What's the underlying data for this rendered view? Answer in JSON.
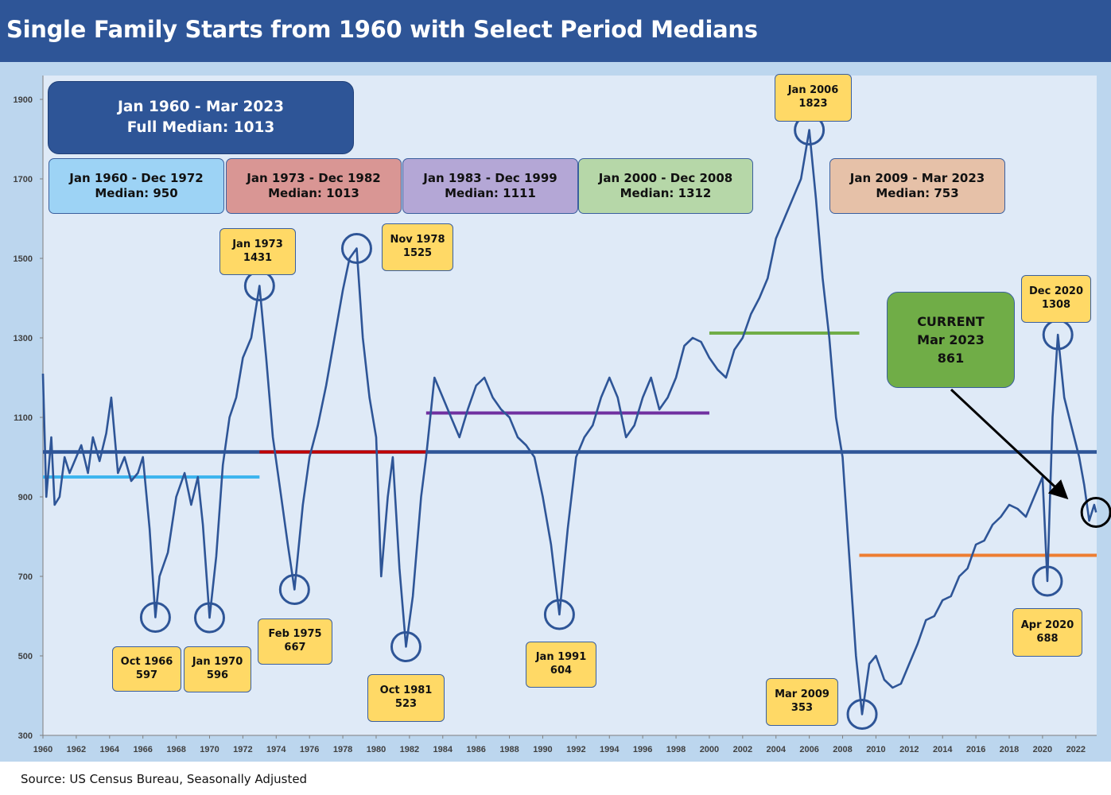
{
  "title": "Single Family Starts from 1960 with Select Period Medians",
  "source": "Source: US Census Bureau, Seasonally Adjusted",
  "full_median_box": {
    "line1": "Jan 1960 - Mar 2023",
    "line2": "Full Median: 1013"
  },
  "period_boxes": [
    {
      "line1": "Jan 1960 - Dec 1972",
      "line2": "Median: 950",
      "color": "#9dd3f5"
    },
    {
      "line1": "Jan 1973 - Dec 1982",
      "line2": "Median: 1013",
      "color": "#d99694"
    },
    {
      "line1": "Jan 1983 - Dec 1999",
      "line2": "Median: 1111",
      "color": "#b4a7d6"
    },
    {
      "line1": "Jan 2000 - Dec 2008",
      "line2": "Median: 1312",
      "color": "#b6d7a8"
    },
    {
      "line1": "Jan 2009 - Mar 2023",
      "line2": "Median: 753",
      "color": "#e6c1a8"
    }
  ],
  "current_box": {
    "line1": "CURRENT",
    "line2": "Mar 2023",
    "line3": "861",
    "color": "#70ad47"
  },
  "annotations": [
    {
      "date": "Oct 1966",
      "value": "597"
    },
    {
      "date": "Jan 1970",
      "value": "596"
    },
    {
      "date": "Jan 1973",
      "value": "1431"
    },
    {
      "date": "Feb 1975",
      "value": "667"
    },
    {
      "date": "Nov 1978",
      "value": "1525"
    },
    {
      "date": "Oct 1981",
      "value": "523"
    },
    {
      "date": "Jan 1991",
      "value": "604"
    },
    {
      "date": "Jan 2006",
      "value": "1823"
    },
    {
      "date": "Mar 2009",
      "value": "353"
    },
    {
      "date": "Apr 2020",
      "value": "688"
    },
    {
      "date": "Dec 2020",
      "value": "1308"
    }
  ],
  "chart_data": {
    "type": "line",
    "title": "Single Family Starts from 1960 with Select Period Medians",
    "xlim": [
      1960,
      2023.25
    ],
    "ylim": [
      300,
      1960
    ],
    "y_ticks": [
      300,
      500,
      700,
      900,
      1100,
      1300,
      1500,
      1700,
      1900
    ],
    "x_ticks": [
      1960,
      1962,
      1964,
      1966,
      1968,
      1970,
      1972,
      1974,
      1976,
      1978,
      1980,
      1982,
      1984,
      1986,
      1988,
      1990,
      1992,
      1994,
      1996,
      1998,
      2000,
      2002,
      2004,
      2006,
      2008,
      2010,
      2012,
      2014,
      2016,
      2018,
      2020,
      2022
    ],
    "series": [
      {
        "line_color": "#2e5597",
        "points": [
          [
            1960.0,
            1210
          ],
          [
            1960.2,
            900
          ],
          [
            1960.5,
            1050
          ],
          [
            1960.7,
            880
          ],
          [
            1961.0,
            900
          ],
          [
            1961.3,
            1000
          ],
          [
            1961.6,
            960
          ],
          [
            1962.0,
            1000
          ],
          [
            1962.3,
            1030
          ],
          [
            1962.7,
            960
          ],
          [
            1963.0,
            1050
          ],
          [
            1963.4,
            990
          ],
          [
            1963.8,
            1060
          ],
          [
            1964.1,
            1150
          ],
          [
            1964.5,
            960
          ],
          [
            1964.9,
            1000
          ],
          [
            1965.3,
            940
          ],
          [
            1965.7,
            960
          ],
          [
            1966.0,
            1000
          ],
          [
            1966.4,
            820
          ],
          [
            1966.75,
            597
          ],
          [
            1967.0,
            700
          ],
          [
            1967.5,
            760
          ],
          [
            1968.0,
            900
          ],
          [
            1968.5,
            960
          ],
          [
            1968.9,
            880
          ],
          [
            1969.3,
            950
          ],
          [
            1969.6,
            830
          ],
          [
            1970.0,
            596
          ],
          [
            1970.4,
            750
          ],
          [
            1970.8,
            980
          ],
          [
            1971.2,
            1100
          ],
          [
            1971.6,
            1150
          ],
          [
            1972.0,
            1250
          ],
          [
            1972.5,
            1300
          ],
          [
            1973.0,
            1431
          ],
          [
            1973.4,
            1250
          ],
          [
            1973.8,
            1050
          ],
          [
            1974.3,
            900
          ],
          [
            1974.7,
            780
          ],
          [
            1975.1,
            667
          ],
          [
            1975.6,
            880
          ],
          [
            1976.0,
            1000
          ],
          [
            1976.5,
            1080
          ],
          [
            1977.0,
            1180
          ],
          [
            1977.5,
            1300
          ],
          [
            1978.0,
            1420
          ],
          [
            1978.4,
            1500
          ],
          [
            1978.83,
            1525
          ],
          [
            1979.2,
            1300
          ],
          [
            1979.6,
            1150
          ],
          [
            1980.0,
            1050
          ],
          [
            1980.3,
            700
          ],
          [
            1980.7,
            900
          ],
          [
            1981.0,
            1000
          ],
          [
            1981.4,
            720
          ],
          [
            1981.79,
            523
          ],
          [
            1982.2,
            650
          ],
          [
            1982.7,
            900
          ],
          [
            1983.0,
            1000
          ],
          [
            1983.5,
            1200
          ],
          [
            1984.0,
            1150
          ],
          [
            1984.5,
            1100
          ],
          [
            1985.0,
            1050
          ],
          [
            1985.5,
            1120
          ],
          [
            1986.0,
            1180
          ],
          [
            1986.5,
            1200
          ],
          [
            1987.0,
            1150
          ],
          [
            1987.5,
            1120
          ],
          [
            1988.0,
            1100
          ],
          [
            1988.5,
            1050
          ],
          [
            1989.0,
            1030
          ],
          [
            1989.5,
            1000
          ],
          [
            1990.0,
            900
          ],
          [
            1990.5,
            780
          ],
          [
            1991.0,
            604
          ],
          [
            1991.5,
            820
          ],
          [
            1992.0,
            1000
          ],
          [
            1992.5,
            1050
          ],
          [
            1993.0,
            1080
          ],
          [
            1993.5,
            1150
          ],
          [
            1994.0,
            1200
          ],
          [
            1994.5,
            1150
          ],
          [
            1995.0,
            1050
          ],
          [
            1995.5,
            1080
          ],
          [
            1996.0,
            1150
          ],
          [
            1996.5,
            1200
          ],
          [
            1997.0,
            1120
          ],
          [
            1997.5,
            1150
          ],
          [
            1998.0,
            1200
          ],
          [
            1998.5,
            1280
          ],
          [
            1999.0,
            1300
          ],
          [
            1999.5,
            1290
          ],
          [
            2000.0,
            1250
          ],
          [
            2000.5,
            1220
          ],
          [
            2001.0,
            1200
          ],
          [
            2001.5,
            1270
          ],
          [
            2002.0,
            1300
          ],
          [
            2002.5,
            1360
          ],
          [
            2003.0,
            1400
          ],
          [
            2003.5,
            1450
          ],
          [
            2004.0,
            1550
          ],
          [
            2004.5,
            1600
          ],
          [
            2005.0,
            1650
          ],
          [
            2005.5,
            1700
          ],
          [
            2006.0,
            1823
          ],
          [
            2006.4,
            1650
          ],
          [
            2006.8,
            1450
          ],
          [
            2007.2,
            1300
          ],
          [
            2007.6,
            1100
          ],
          [
            2008.0,
            1000
          ],
          [
            2008.4,
            750
          ],
          [
            2008.8,
            500
          ],
          [
            2009.17,
            353
          ],
          [
            2009.6,
            480
          ],
          [
            2010.0,
            500
          ],
          [
            2010.5,
            440
          ],
          [
            2011.0,
            420
          ],
          [
            2011.5,
            430
          ],
          [
            2012.0,
            480
          ],
          [
            2012.5,
            530
          ],
          [
            2013.0,
            590
          ],
          [
            2013.5,
            600
          ],
          [
            2014.0,
            640
          ],
          [
            2014.5,
            650
          ],
          [
            2015.0,
            700
          ],
          [
            2015.5,
            720
          ],
          [
            2016.0,
            780
          ],
          [
            2016.5,
            790
          ],
          [
            2017.0,
            830
          ],
          [
            2017.5,
            850
          ],
          [
            2018.0,
            880
          ],
          [
            2018.5,
            870
          ],
          [
            2019.0,
            850
          ],
          [
            2019.5,
            900
          ],
          [
            2020.0,
            950
          ],
          [
            2020.29,
            688
          ],
          [
            2020.6,
            1100
          ],
          [
            2020.92,
            1308
          ],
          [
            2021.3,
            1150
          ],
          [
            2021.6,
            1100
          ],
          [
            2021.9,
            1050
          ],
          [
            2022.2,
            1000
          ],
          [
            2022.5,
            930
          ],
          [
            2022.8,
            840
          ],
          [
            2023.1,
            880
          ],
          [
            2023.21,
            861
          ]
        ]
      }
    ],
    "median_lines": [
      {
        "label": "Full Median",
        "value": 1013,
        "from": 1960,
        "to": 2023.25,
        "color": "#2e5597"
      },
      {
        "label": "Jan 1960 - Dec 1972",
        "value": 950,
        "from": 1960,
        "to": 1973,
        "color": "#3db5ee"
      },
      {
        "label": "Jan 1973 - Dec 1982",
        "value": 1013,
        "from": 1973,
        "to": 1983,
        "color": "#c00000"
      },
      {
        "label": "Jan 1983 - Dec 1999",
        "value": 1111,
        "from": 1983,
        "to": 2000,
        "color": "#7030a0"
      },
      {
        "label": "Jan 2000 - Dec 2008",
        "value": 1312,
        "from": 2000,
        "to": 2009,
        "color": "#70ad47"
      },
      {
        "label": "Jan 2009 - Mar 2023",
        "value": 753,
        "from": 2009,
        "to": 2023.25,
        "color": "#ed7d31"
      }
    ],
    "circled_points": [
      {
        "x": 1966.75,
        "y": 597
      },
      {
        "x": 1970.0,
        "y": 596
      },
      {
        "x": 1973.0,
        "y": 1431
      },
      {
        "x": 1975.1,
        "y": 667
      },
      {
        "x": 1978.83,
        "y": 1525
      },
      {
        "x": 1981.79,
        "y": 523
      },
      {
        "x": 1991.0,
        "y": 604
      },
      {
        "x": 2006.0,
        "y": 1823
      },
      {
        "x": 2009.17,
        "y": 353
      },
      {
        "x": 2020.29,
        "y": 688
      },
      {
        "x": 2020.92,
        "y": 1308
      },
      {
        "x": 2023.21,
        "y": 861
      }
    ]
  }
}
